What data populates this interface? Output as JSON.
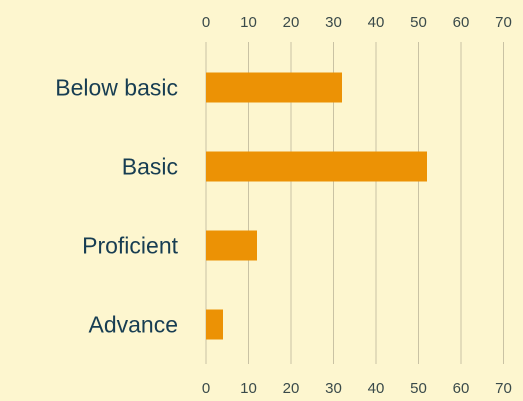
{
  "chart_data": {
    "type": "bar",
    "orientation": "horizontal",
    "categories": [
      "Below basic",
      "Basic",
      "Proficient",
      "Advance"
    ],
    "values": [
      32,
      52,
      12,
      4
    ],
    "title": "",
    "xlabel": "",
    "ylabel": "",
    "xlim": [
      0,
      70
    ],
    "x_ticks": [
      0,
      10,
      20,
      30,
      40,
      50,
      60,
      70
    ],
    "tick_positions": [
      "top",
      "bottom"
    ],
    "grid": "vertical",
    "bar_color": "#ec9205",
    "background_color": "#fdf6cf"
  }
}
